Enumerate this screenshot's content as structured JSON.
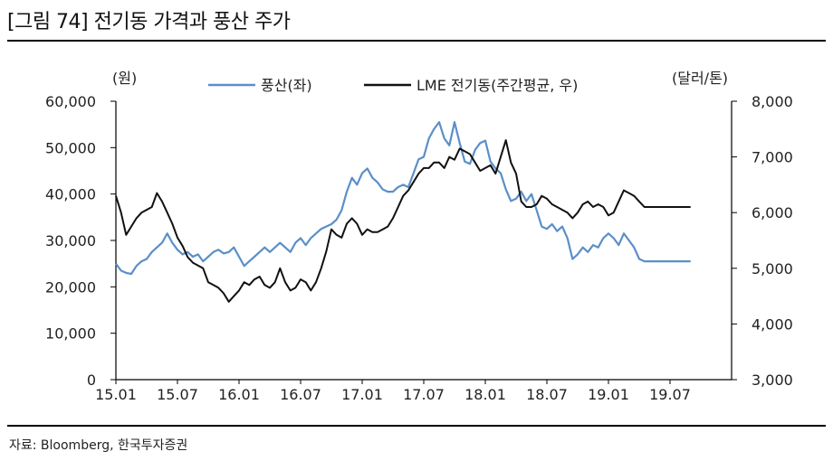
{
  "title": "[그림 74] 전기동 가격과 풍산 주가",
  "source": "자료: Bloomberg, 한국투자증권",
  "chart_data": {
    "type": "line",
    "left_unit": "(원)",
    "right_unit": "(달러/톤)",
    "x_tick_labels": [
      "15.01",
      "15.07",
      "16.01",
      "16.07",
      "17.01",
      "17.07",
      "18.01",
      "18.07",
      "19.01",
      "19.07"
    ],
    "x_domain": [
      0,
      60
    ],
    "left_axis": {
      "ylim": [
        0,
        60000
      ],
      "ticks": [
        0,
        10000,
        20000,
        30000,
        40000,
        50000,
        60000
      ],
      "tick_labels": [
        "0",
        "10,000",
        "20,000",
        "30,000",
        "40,000",
        "50,000",
        "60,000"
      ]
    },
    "right_axis": {
      "ylim": [
        3000,
        8000
      ],
      "ticks": [
        3000,
        4000,
        5000,
        6000,
        7000,
        8000
      ],
      "tick_labels": [
        "3,000",
        "4,000",
        "5,000",
        "6,000",
        "7,000",
        "8,000"
      ]
    },
    "series": [
      {
        "name": "풍산(좌)",
        "axis": "left",
        "color": "#5b8fc8",
        "x": [
          0,
          0.5,
          1,
          1.5,
          2,
          2.5,
          3,
          3.5,
          4,
          4.5,
          5,
          5.5,
          6,
          6.5,
          7,
          7.5,
          8,
          8.5,
          9,
          9.5,
          10,
          10.5,
          11,
          11.5,
          12,
          12.5,
          13,
          13.5,
          14,
          14.5,
          15,
          15.5,
          16,
          16.5,
          17,
          17.5,
          18,
          18.5,
          19,
          19.5,
          20,
          20.5,
          21,
          21.5,
          22,
          22.5,
          23,
          23.5,
          24,
          24.5,
          25,
          25.5,
          26,
          26.5,
          27,
          27.5,
          28,
          28.5,
          29,
          29.5,
          30,
          30.5,
          31,
          31.5,
          32,
          32.5,
          33,
          33.5,
          34,
          34.5,
          35,
          35.5,
          36,
          36.5,
          37,
          37.5,
          38,
          38.5,
          39,
          39.5,
          40,
          40.5,
          41,
          41.5,
          42,
          42.5,
          43,
          43.5,
          44,
          44.5,
          45,
          45.5,
          46,
          46.5,
          47,
          47.5,
          48,
          48.5,
          49,
          49.5,
          50,
          50.5,
          51,
          51.5,
          52,
          52.5,
          53,
          53.5,
          54,
          54.5,
          55,
          55.5,
          56
        ],
        "values": [
          25000,
          23500,
          23000,
          22800,
          24500,
          25500,
          26000,
          27500,
          28500,
          29500,
          31500,
          29500,
          28000,
          27000,
          27500,
          26500,
          27000,
          25500,
          26500,
          27500,
          28000,
          27200,
          27500,
          28500,
          26500,
          24500,
          25500,
          26500,
          27500,
          28500,
          27500,
          28500,
          29500,
          28500,
          27500,
          29500,
          30500,
          29000,
          30500,
          31500,
          32500,
          33000,
          33500,
          34500,
          36500,
          40500,
          43500,
          42000,
          44500,
          45500,
          43500,
          42500,
          41000,
          40500,
          40500,
          41500,
          42000,
          41500,
          44500,
          47500,
          48000,
          52000,
          54000,
          55500,
          52000,
          50500,
          55500,
          51000,
          47000,
          46500,
          49500,
          51000,
          51500,
          47000,
          45500,
          44500,
          41000,
          38500,
          39000,
          40500,
          38500,
          40000,
          36500,
          33000,
          32500,
          33500,
          32000,
          33000,
          30500,
          26000,
          27000,
          28500,
          27500,
          29000,
          28500,
          30500,
          31500,
          30500,
          29000,
          31500,
          30000,
          28500,
          26000,
          25500,
          25500,
          25500,
          25500,
          25500,
          25500,
          25500,
          25500,
          25500,
          25500
        ]
      },
      {
        "name": "LME 전기동(주간평균, 우)",
        "axis": "right",
        "color": "#111111",
        "x": [
          0,
          0.5,
          1,
          1.5,
          2,
          2.5,
          3,
          3.5,
          4,
          4.5,
          5,
          5.5,
          6,
          6.5,
          7,
          7.5,
          8,
          8.5,
          9,
          9.5,
          10,
          10.5,
          11,
          11.5,
          12,
          12.5,
          13,
          13.5,
          14,
          14.5,
          15,
          15.5,
          16,
          16.5,
          17,
          17.5,
          18,
          18.5,
          19,
          19.5,
          20,
          20.5,
          21,
          21.5,
          22,
          22.5,
          23,
          23.5,
          24,
          24.5,
          25,
          25.5,
          26,
          26.5,
          27,
          27.5,
          28,
          28.5,
          29,
          29.5,
          30,
          30.5,
          31,
          31.5,
          32,
          32.5,
          33,
          33.5,
          34,
          34.5,
          35,
          35.5,
          36,
          36.5,
          37,
          37.5,
          38,
          38.5,
          39,
          39.5,
          40,
          40.5,
          41,
          41.5,
          42,
          42.5,
          43,
          43.5,
          44,
          44.5,
          45,
          45.5,
          46,
          46.5,
          47,
          47.5,
          48,
          48.5,
          49,
          49.5,
          50,
          50.5,
          51,
          51.5,
          52,
          52.5,
          53,
          53.5,
          54,
          54.5,
          55,
          55.5,
          56
        ],
        "values": [
          6300,
          6000,
          5600,
          5750,
          5900,
          6000,
          6050,
          6100,
          6350,
          6200,
          6000,
          5800,
          5550,
          5400,
          5200,
          5100,
          5050,
          5000,
          4750,
          4700,
          4650,
          4550,
          4400,
          4500,
          4600,
          4750,
          4700,
          4800,
          4850,
          4700,
          4650,
          4750,
          5000,
          4750,
          4600,
          4650,
          4800,
          4750,
          4600,
          4750,
          5000,
          5300,
          5700,
          5600,
          5550,
          5800,
          5900,
          5800,
          5600,
          5700,
          5650,
          5650,
          5700,
          5750,
          5900,
          6100,
          6300,
          6400,
          6550,
          6700,
          6800,
          6800,
          6900,
          6900,
          6800,
          7000,
          6950,
          7150,
          7100,
          7050,
          6900,
          6750,
          6800,
          6850,
          6700,
          7000,
          7300,
          6900,
          6700,
          6200,
          6100,
          6100,
          6150,
          6300,
          6250,
          6150,
          6100,
          6050,
          6000,
          5900,
          6000,
          6150,
          6200,
          6100,
          6150,
          6100,
          5950,
          6000,
          6200,
          6400,
          6350,
          6300,
          6200,
          6100,
          6100,
          6100,
          6100,
          6100,
          6100,
          6100,
          6100,
          6100,
          6100
        ]
      }
    ]
  }
}
